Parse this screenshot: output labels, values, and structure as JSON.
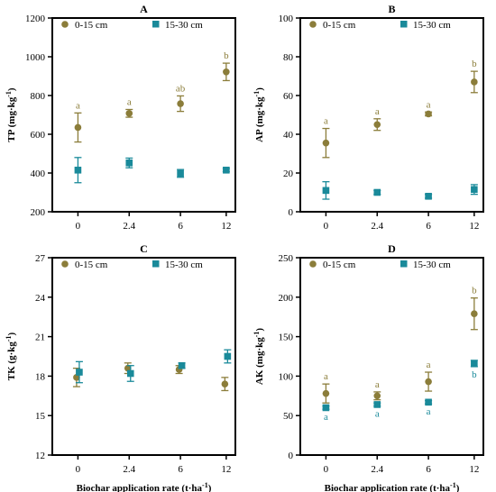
{
  "colors": {
    "topsoil": "#8B7D3A",
    "subsoil": "#1A8A9A",
    "axis": "#000000"
  },
  "legend": {
    "series0": "0-15 cm",
    "series1": "15-30 cm"
  },
  "x_axis_label": "Biochar application rate (t·ha⁻¹)",
  "chart_data": [
    {
      "type": "scatter",
      "panel": "A",
      "ylabel": "TP (mg·kg⁻¹)",
      "categories": [
        "0",
        "2.4",
        "6",
        "12"
      ],
      "ylim": [
        200,
        1200
      ],
      "yticks": [
        "200",
        "400",
        "600",
        "800",
        "1000",
        "1200"
      ],
      "series": [
        {
          "name": "0-15 cm",
          "values": [
            635,
            708,
            758,
            922
          ],
          "errors": [
            75,
            20,
            40,
            45
          ],
          "letters": [
            "a",
            "a",
            "ab",
            "b"
          ]
        },
        {
          "name": "15-30 cm",
          "values": [
            415,
            452,
            398,
            415
          ],
          "errors": [
            65,
            25,
            20,
            8
          ],
          "letters": [
            "",
            "",
            "",
            ""
          ]
        }
      ]
    },
    {
      "type": "scatter",
      "panel": "B",
      "ylabel": "AP (mg·kg⁻¹)",
      "categories": [
        "0",
        "2.4",
        "6",
        "12"
      ],
      "ylim": [
        0,
        100
      ],
      "yticks": [
        "0",
        "20",
        "40",
        "60",
        "80",
        "100"
      ],
      "series": [
        {
          "name": "0-15 cm",
          "values": [
            35.5,
            45,
            50.5,
            67
          ],
          "errors": [
            7.5,
            3,
            1,
            5.5
          ],
          "letters": [
            "a",
            "a",
            "a",
            "b"
          ]
        },
        {
          "name": "15-30 cm",
          "values": [
            11,
            10,
            8,
            11.5
          ],
          "errors": [
            4.5,
            1,
            1,
            2.5
          ],
          "letters": [
            "",
            "",
            "",
            ""
          ]
        }
      ]
    },
    {
      "type": "scatter",
      "panel": "C",
      "ylabel": "TK (g·kg⁻¹)",
      "categories": [
        "0",
        "2.4",
        "6",
        "12"
      ],
      "ylim": [
        12,
        27
      ],
      "yticks": [
        "12",
        "15",
        "18",
        "21",
        "24",
        "27"
      ],
      "series": [
        {
          "name": "0-15 cm",
          "values": [
            17.9,
            18.6,
            18.5,
            17.4
          ],
          "errors": [
            0.7,
            0.4,
            0.3,
            0.5
          ],
          "letters": [
            "",
            "",
            "",
            ""
          ]
        },
        {
          "name": "15-30 cm",
          "values": [
            18.3,
            18.2,
            18.8,
            19.5
          ],
          "errors": [
            0.8,
            0.6,
            0.2,
            0.5
          ],
          "letters": [
            "",
            "",
            "",
            ""
          ]
        }
      ]
    },
    {
      "type": "scatter",
      "panel": "D",
      "ylabel": "AK (mg·kg⁻¹)",
      "categories": [
        "0",
        "2.4",
        "6",
        "12"
      ],
      "ylim": [
        0,
        250
      ],
      "yticks": [
        "0",
        "50",
        "100",
        "150",
        "200",
        "250"
      ],
      "series": [
        {
          "name": "0-15 cm",
          "values": [
            78,
            75,
            93,
            179
          ],
          "errors": [
            12,
            5,
            12,
            20
          ],
          "letters": [
            "a",
            "a",
            "a",
            "b"
          ]
        },
        {
          "name": "15-30 cm",
          "values": [
            60,
            64,
            67,
            116
          ],
          "errors": [
            2,
            2,
            2,
            4
          ],
          "letters": [
            "a",
            "a",
            "a",
            "b"
          ]
        }
      ]
    }
  ]
}
